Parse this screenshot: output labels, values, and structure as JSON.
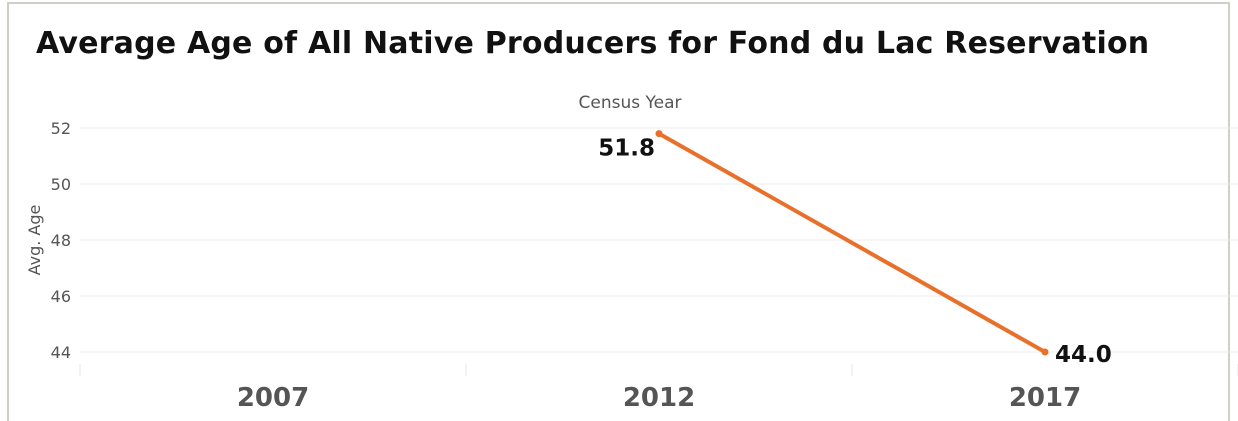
{
  "chart_data": {
    "type": "line",
    "title": "Average Age of All Native Producers for Fond du Lac Reservation",
    "xlabel": "Census Year",
    "ylabel": "Avg. Age",
    "categories": [
      "2007",
      "2012",
      "2017"
    ],
    "series": [
      {
        "values": [
          null,
          51.8,
          44.0
        ],
        "color": "#e8702a",
        "labels": [
          "",
          "51.8",
          "44.0"
        ]
      }
    ],
    "ylim": [
      43.5,
      52.3
    ],
    "yticks": [
      44,
      46,
      48,
      50,
      52
    ],
    "ytick_labels": [
      "44",
      "46",
      "48",
      "50",
      "52"
    ],
    "grid": true
  }
}
